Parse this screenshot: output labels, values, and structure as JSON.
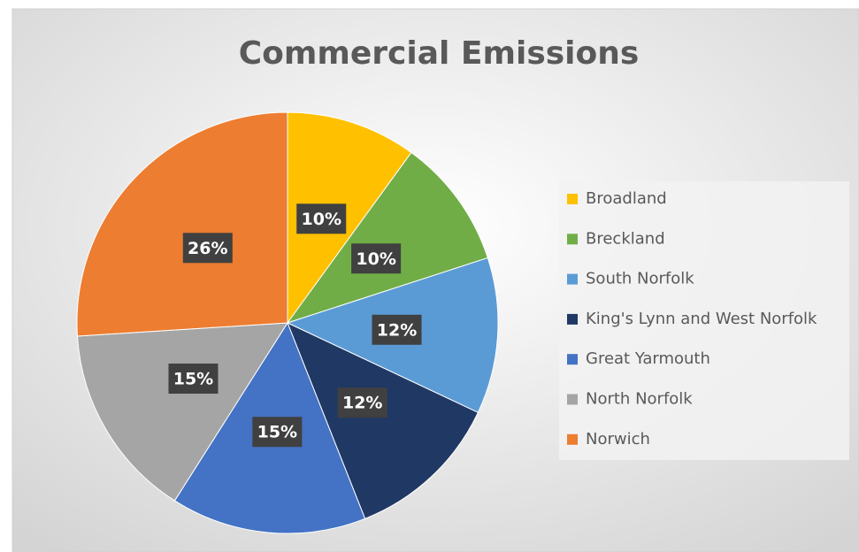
{
  "chart_data": {
    "type": "pie",
    "title": "Commercial Emissions",
    "categories": [
      "Broadland",
      "Breckland",
      "South Norfolk",
      "King's Lynn and West Norfolk",
      "Great Yarmouth",
      "North Norfolk",
      "Norwich"
    ],
    "values": [
      10,
      10,
      12,
      12,
      15,
      15,
      26
    ],
    "value_labels": [
      "10%",
      "10%",
      "12%",
      "12%",
      "15%",
      "15%",
      "26%"
    ],
    "colors": [
      "#ffc000",
      "#70ad47",
      "#5b9bd5",
      "#203864",
      "#4472c4",
      "#a5a5a5",
      "#ed7d31"
    ],
    "legend": "right"
  }
}
